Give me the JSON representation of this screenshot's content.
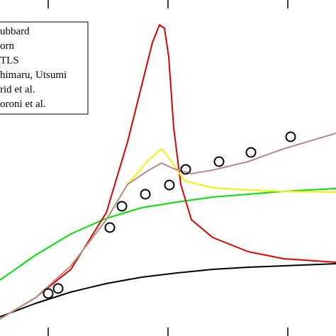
{
  "chart_data": {
    "type": "line",
    "xlim": [
      0,
      474
    ],
    "ylim": [
      0,
      474
    ],
    "xticks": [
      68,
      237,
      406
    ],
    "series": [
      {
        "name": "ubbard",
        "color": "#000000",
        "x": [
          0,
          50,
          100,
          150,
          200,
          250,
          300,
          350,
          400,
          474
        ],
        "values": [
          27,
          46,
          62,
          74,
          83,
          89,
          94,
          97,
          99,
          102
        ]
      },
      {
        "name": "orn",
        "color": "#00e000",
        "x": [
          0,
          50,
          100,
          150,
          200,
          250,
          300,
          350,
          400,
          474
        ],
        "values": [
          79,
          114,
          144,
          166,
          181,
          189,
          196,
          200,
          204,
          208
        ]
      },
      {
        "name": "TLS",
        "color": "#dd0000",
        "x": [
          0,
          50,
          100,
          150,
          180,
          200,
          215,
          225,
          232,
          238,
          245,
          255,
          270,
          300,
          350,
          400,
          474
        ],
        "values": [
          24,
          54,
          94,
          174,
          274,
          354,
          414,
          439,
          434,
          394,
          294,
          214,
          164,
          139,
          119,
          109,
          104
        ]
      },
      {
        "name": "himaru, Utsumi",
        "color": "#ffee00",
        "x": [
          0,
          50,
          100,
          150,
          180,
          210,
          228,
          240,
          260,
          300,
          350,
          400,
          474
        ],
        "values": [
          24,
          54,
          99,
          164,
          214,
          249,
          264,
          249,
          219,
          209,
          206,
          204,
          203
        ]
      },
      {
        "name": "rid et al.",
        "color": "#b88a88",
        "x": [
          0,
          50,
          100,
          150,
          180,
          210,
          228,
          245,
          270,
          300,
          350,
          400,
          474
        ],
        "values": [
          24,
          54,
          99,
          164,
          214,
          234,
          244,
          236,
          229,
          234,
          246,
          264,
          286
        ]
      },
      {
        "name": "oroni et al.",
        "color": "#000000",
        "marker": "circle",
        "x": [
          68,
          82,
          155,
          172,
          205,
          239,
          262,
          309,
          354,
          410
        ],
        "values": [
          60,
          67,
          153,
          183,
          200,
          213,
          235,
          246,
          259,
          281
        ]
      }
    ]
  }
}
